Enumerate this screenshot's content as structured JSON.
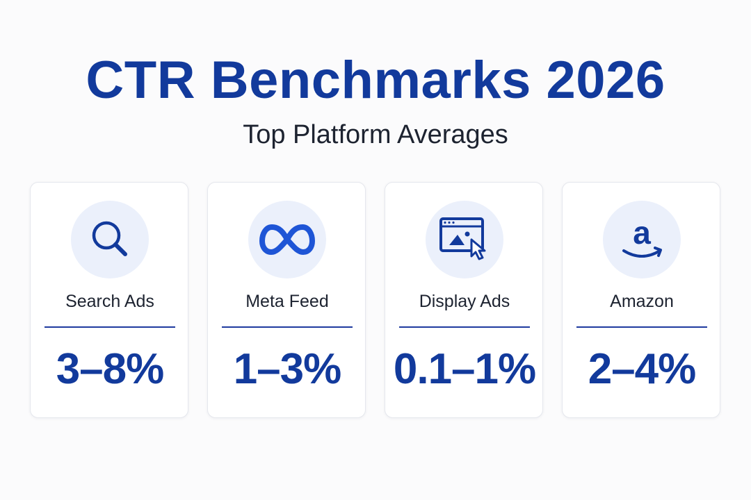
{
  "header": {
    "title": "CTR Benchmarks 2026",
    "subtitle": "Top Platform Averages"
  },
  "colors": {
    "accent": "#123a9c",
    "icon_bg": "#ebf0fb",
    "text": "#1d2330"
  },
  "cards": [
    {
      "label": "Search Ads",
      "value": "3–8%",
      "icon": "search-icon"
    },
    {
      "label": "Meta Feed",
      "value": "1–3%",
      "icon": "meta-logo-icon"
    },
    {
      "label": "Display Ads",
      "value": "0.1–1%",
      "icon": "browser-image-cursor-icon"
    },
    {
      "label": "Amazon",
      "value": "2–4%",
      "icon": "amazon-logo-icon"
    }
  ]
}
